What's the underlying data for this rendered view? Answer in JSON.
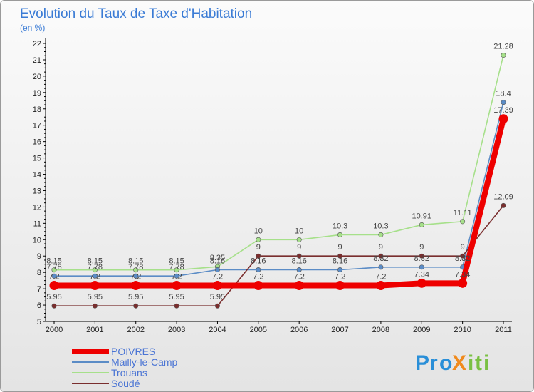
{
  "chart_data": {
    "type": "line",
    "title": "Evolution du Taux de Taxe d'Habitation",
    "ylabel": "(en %)",
    "xlabel": "",
    "categories": [
      "2000",
      "2001",
      "2002",
      "2003",
      "2004",
      "2005",
      "2006",
      "2007",
      "2008",
      "2009",
      "2010",
      "2011"
    ],
    "ylim": [
      5,
      22
    ],
    "yticks": [
      5,
      6,
      7,
      8,
      9,
      10,
      11,
      12,
      13,
      14,
      15,
      16,
      17,
      18,
      19,
      20,
      21,
      22
    ],
    "grid": false,
    "series": [
      {
        "name": "POIVRES",
        "color": "#ee0000",
        "values": [
          7.2,
          7.2,
          7.2,
          7.2,
          7.2,
          7.2,
          7.2,
          7.2,
          7.2,
          7.34,
          7.34,
          17.39
        ],
        "labels": [
          "7.2",
          "7.2",
          "7.2",
          "7.2",
          "7.2",
          "7.2",
          "7.2",
          "7.2",
          "7.2",
          "7.34",
          "7.34",
          "17.39"
        ]
      },
      {
        "name": "Mailly-le-Camp",
        "color": "#5b8cc6",
        "values": [
          7.78,
          7.78,
          7.78,
          7.78,
          8.16,
          8.16,
          8.16,
          8.16,
          8.32,
          8.32,
          8.32,
          18.4
        ],
        "labels": [
          "7.78",
          "7.78",
          "7.78",
          "7.78",
          "8.16",
          "8.16",
          "8.16",
          "8.16",
          "8.32",
          "8.32",
          "8.32",
          "18.4"
        ]
      },
      {
        "name": "Trouans",
        "color": "#a6e08a",
        "values": [
          8.15,
          8.15,
          8.15,
          8.15,
          8.35,
          10,
          10,
          10.3,
          10.3,
          10.91,
          11.11,
          21.28
        ],
        "labels": [
          "8.15",
          "8.15",
          "8.15",
          "8.15",
          "8.35",
          "10",
          "10",
          "10.3",
          "10.3",
          "10.91",
          "11.11",
          "21.28"
        ]
      },
      {
        "name": "Soudé",
        "color": "#7a2e2e",
        "values": [
          5.95,
          5.95,
          5.95,
          5.95,
          5.95,
          9,
          9,
          9,
          9,
          9,
          9,
          12.09
        ],
        "labels": [
          "5.95",
          "5.95",
          "5.95",
          "5.95",
          "5.95",
          "9",
          "9",
          "9",
          "9",
          "9",
          "9",
          "12.09"
        ]
      }
    ],
    "legend_position": "bottom-left"
  },
  "logo": {
    "text": "ProXiti",
    "letters": [
      {
        "ch": "P",
        "color": "#2a8fd8"
      },
      {
        "ch": "r",
        "color": "#2a8fd8"
      },
      {
        "ch": "o",
        "color": "#2a8fd8"
      },
      {
        "ch": "X",
        "color": "#f08a1c"
      },
      {
        "ch": "i",
        "color": "#7ac043"
      },
      {
        "ch": "t",
        "color": "#7ac043"
      },
      {
        "ch": "i",
        "color": "#7ac043"
      }
    ]
  }
}
